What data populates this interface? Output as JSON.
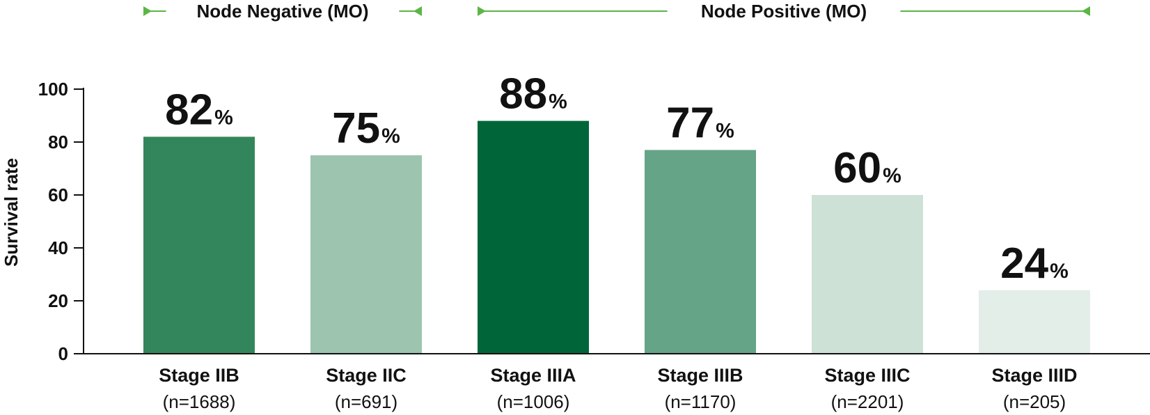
{
  "chart_data": {
    "type": "bar",
    "categories": [
      "Stage IIB",
      "Stage IIC",
      "Stage IIIA",
      "Stage IIIB",
      "Stage IIIC",
      "Stage IIID"
    ],
    "sample_sizes": [
      "(n=1688)",
      "(n=691)",
      "(n=1006)",
      "(n=1170)",
      "(n=2201)",
      "(n=205)"
    ],
    "values": [
      82,
      75,
      88,
      77,
      60,
      24
    ],
    "value_labels": [
      "82",
      "75",
      "88",
      "77",
      "60",
      "24"
    ],
    "value_suffix": "%",
    "bar_colors": [
      "#33865b",
      "#9cc4af",
      "#00663a",
      "#66a487",
      "#cde1d6",
      "#e3eee8"
    ],
    "ylabel": "Survival rate",
    "ylim": [
      0,
      100
    ],
    "yticks": [
      "0",
      "20",
      "40",
      "60",
      "80",
      "100"
    ],
    "grid": false,
    "groups": [
      {
        "label": "Node Negative (MO)",
        "start_category": 0,
        "end_category": 1
      },
      {
        "label": "Node Positive (MO)",
        "start_category": 2,
        "end_category": 5
      }
    ],
    "group_line_color": "#5cb545"
  }
}
